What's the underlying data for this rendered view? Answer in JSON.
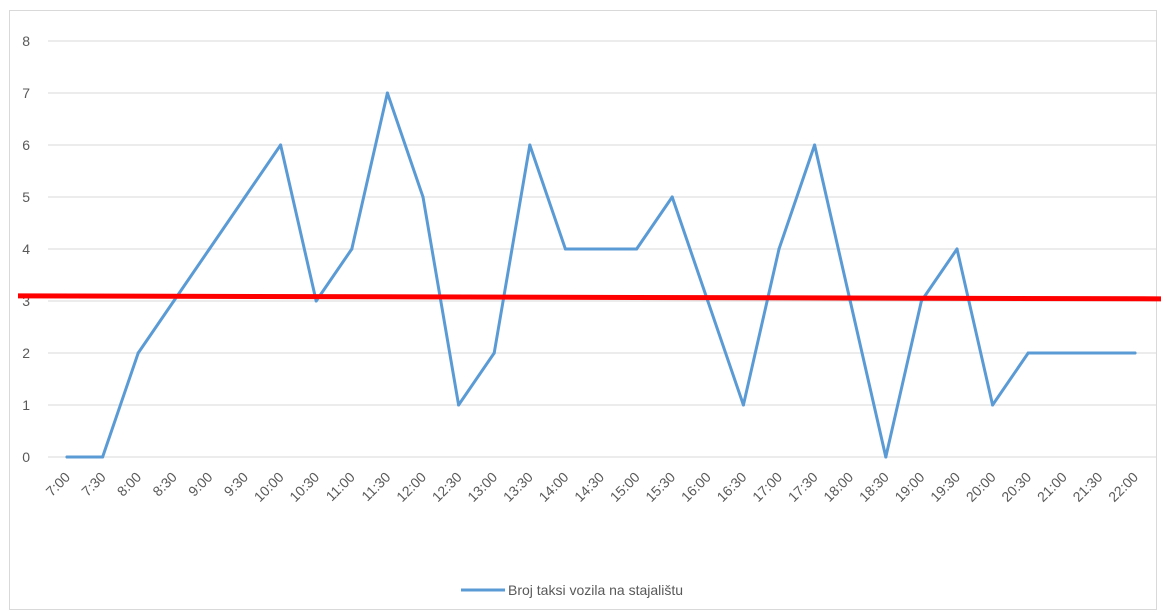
{
  "chart_data": {
    "type": "line",
    "title": "",
    "xlabel": "",
    "ylabel": "",
    "x": [
      "7:00",
      "7:30",
      "8:00",
      "8:30",
      "9:00",
      "9:30",
      "10:00",
      "10:30",
      "11:00",
      "11:30",
      "12:00",
      "12:30",
      "13:00",
      "13:30",
      "14:00",
      "14:30",
      "15:00",
      "15:30",
      "16:00",
      "16:30",
      "17:00",
      "17:30",
      "18:00",
      "18:30",
      "19:00",
      "19:30",
      "20:00",
      "20:30",
      "21:00",
      "21:30",
      "22:00"
    ],
    "series": [
      {
        "name": "Broj taksi vozila na stajalištu",
        "color": "#5b9bd5",
        "values": [
          0,
          0,
          2,
          3,
          4,
          5,
          6,
          3,
          4,
          7,
          5,
          1,
          2,
          6,
          4,
          4,
          4,
          5,
          3,
          1,
          4,
          6,
          3,
          0,
          3,
          4,
          1,
          2,
          2,
          2,
          2
        ]
      }
    ],
    "reference_line": {
      "value": 3.08,
      "color": "#ff0000"
    },
    "ylim": [
      0,
      8
    ],
    "yticks": [
      0,
      1,
      2,
      3,
      4,
      5,
      6,
      7,
      8
    ],
    "grid": true,
    "legend_position": "bottom"
  }
}
